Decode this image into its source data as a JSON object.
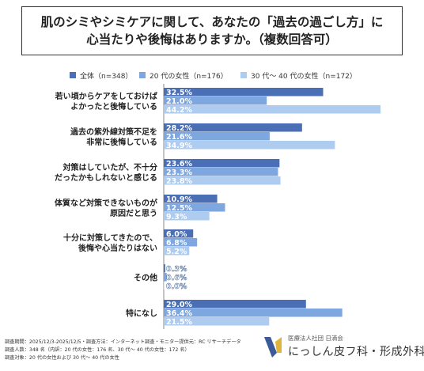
{
  "title": {
    "line1": "肌のシミやシミケアに関して、あなたの「過去の過ごし方」に",
    "line2": "心当たりや後悔はありますか。（複数回答可）"
  },
  "colors": {
    "series1": "#4a6fb5",
    "series2": "#7ea6df",
    "series3": "#aecbf0"
  },
  "chart_data": {
    "type": "bar",
    "orientation": "horizontal",
    "unit": "%",
    "xlim": [
      0,
      50
    ],
    "legend_position": "top",
    "categories": [
      [
        "若い頃からケアをしておけば",
        "よかったと後悔している"
      ],
      [
        "過去の紫外線対策不足を",
        "非常に後悔している"
      ],
      [
        "対策はしていたが、不十分",
        "だったかもしれないと感じる"
      ],
      [
        "体質など対策できないものが",
        "原因だと思う"
      ],
      [
        "十分に対策してきたので、",
        "後悔や心当たりはない"
      ],
      [
        "その他"
      ],
      [
        "特になし"
      ]
    ],
    "series": [
      {
        "name": "全体（n=348）",
        "values": [
          32.5,
          28.2,
          23.6,
          10.9,
          6.0,
          0.3,
          29.0
        ]
      },
      {
        "name": "20 代の女性（n=176）",
        "values": [
          21.0,
          21.6,
          23.3,
          12.5,
          6.8,
          0.6,
          36.4
        ]
      },
      {
        "name": "30 代～ 40 代の女性（n=172）",
        "values": [
          44.2,
          34.9,
          23.8,
          9.3,
          5.2,
          0.0,
          21.5
        ]
      }
    ]
  },
  "footer": {
    "line1": "調査期間：2025/12/3-2025/12/5・調査方法：インターネット調査・モニター提供元：RC リサーチデータ",
    "line2": "調査人数：348 名（内訳：20 代の女性：176 名、30 代～ 40 代の女性：172 名）",
    "line3": "調査対象：20 代の女性および 30 代～ 40 代の女性"
  },
  "brand": {
    "sub": "医療法人社団 日滴会",
    "name": "にっしん皮フ科・形成外科"
  }
}
